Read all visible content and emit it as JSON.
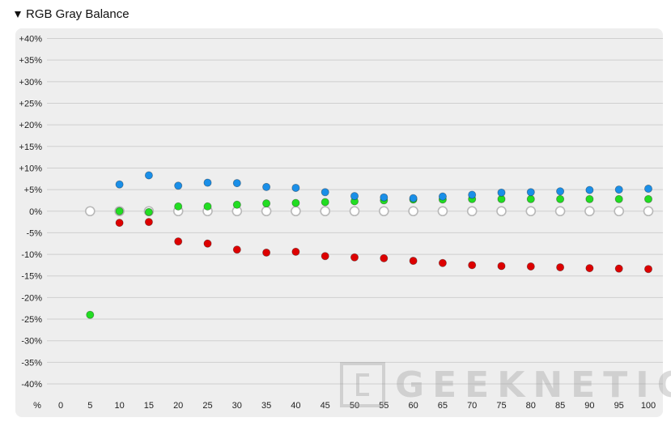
{
  "header": {
    "title": "RGB Gray Balance"
  },
  "chart_data": {
    "type": "scatter",
    "title": "RGB Gray Balance",
    "x_label": "%",
    "x_categories": [
      0,
      5,
      10,
      15,
      20,
      25,
      30,
      35,
      40,
      45,
      50,
      55,
      60,
      65,
      70,
      75,
      80,
      85,
      90,
      95,
      100
    ],
    "y_tick_labels": [
      "+40%",
      "+35%",
      "+30%",
      "+25%",
      "+20%",
      "+15%",
      "+10%",
      "+5%",
      "0%",
      "-5%",
      "-10%",
      "-15%",
      "-20%",
      "-25%",
      "-30%",
      "-35%",
      "-40%"
    ],
    "ylim": [
      -40,
      40
    ],
    "y_tick_step": 5,
    "grid": true,
    "series": [
      {
        "color": "#1a8fe8",
        "points": [
          [
            10,
            6.2
          ],
          [
            15,
            8.3
          ],
          [
            20,
            5.9
          ],
          [
            25,
            6.6
          ],
          [
            30,
            6.5
          ],
          [
            35,
            5.6
          ],
          [
            40,
            5.4
          ],
          [
            45,
            4.4
          ],
          [
            50,
            3.5
          ],
          [
            55,
            3.2
          ],
          [
            60,
            3.0
          ],
          [
            65,
            3.4
          ],
          [
            70,
            3.8
          ],
          [
            75,
            4.3
          ],
          [
            80,
            4.4
          ],
          [
            85,
            4.6
          ],
          [
            90,
            4.9
          ],
          [
            95,
            5.0
          ],
          [
            100,
            5.2
          ]
        ]
      },
      {
        "color": "#22dd22",
        "points": [
          [
            5,
            -24.0
          ],
          [
            10,
            0.0
          ],
          [
            15,
            -0.2
          ],
          [
            20,
            1.1
          ],
          [
            25,
            1.1
          ],
          [
            30,
            1.5
          ],
          [
            35,
            1.8
          ],
          [
            40,
            1.9
          ],
          [
            45,
            2.1
          ],
          [
            50,
            2.3
          ],
          [
            55,
            2.5
          ],
          [
            60,
            2.7
          ],
          [
            65,
            2.7
          ],
          [
            70,
            2.8
          ],
          [
            75,
            2.8
          ],
          [
            80,
            2.8
          ],
          [
            85,
            2.8
          ],
          [
            90,
            2.8
          ],
          [
            95,
            2.8
          ],
          [
            100,
            2.8
          ]
        ]
      },
      {
        "color": "#dd0000",
        "points": [
          [
            10,
            -2.7
          ],
          [
            15,
            -2.5
          ],
          [
            20,
            -7.0
          ],
          [
            25,
            -7.5
          ],
          [
            30,
            -8.9
          ],
          [
            35,
            -9.6
          ],
          [
            40,
            -9.4
          ],
          [
            45,
            -10.4
          ],
          [
            50,
            -10.7
          ],
          [
            55,
            -10.9
          ],
          [
            60,
            -11.5
          ],
          [
            65,
            -12.0
          ],
          [
            70,
            -12.5
          ],
          [
            75,
            -12.7
          ],
          [
            80,
            -12.8
          ],
          [
            85,
            -13.0
          ],
          [
            90,
            -13.2
          ],
          [
            95,
            -13.3
          ],
          [
            100,
            -13.4
          ]
        ]
      },
      {
        "color": "#ffffff",
        "stroke": "#b8b8b8",
        "hollow": true,
        "points": [
          [
            5,
            0
          ],
          [
            10,
            0
          ],
          [
            15,
            0
          ],
          [
            20,
            0
          ],
          [
            25,
            0
          ],
          [
            30,
            0
          ],
          [
            35,
            0
          ],
          [
            40,
            0
          ],
          [
            45,
            0
          ],
          [
            50,
            0
          ],
          [
            55,
            0
          ],
          [
            60,
            0
          ],
          [
            65,
            0
          ],
          [
            70,
            0
          ],
          [
            75,
            0
          ],
          [
            80,
            0
          ],
          [
            85,
            0
          ],
          [
            90,
            0
          ],
          [
            95,
            0
          ],
          [
            100,
            0
          ]
        ]
      }
    ]
  },
  "watermark": {
    "text": "GEEKNETIC",
    "logo_icon": "geeknetic-logo-icon"
  }
}
